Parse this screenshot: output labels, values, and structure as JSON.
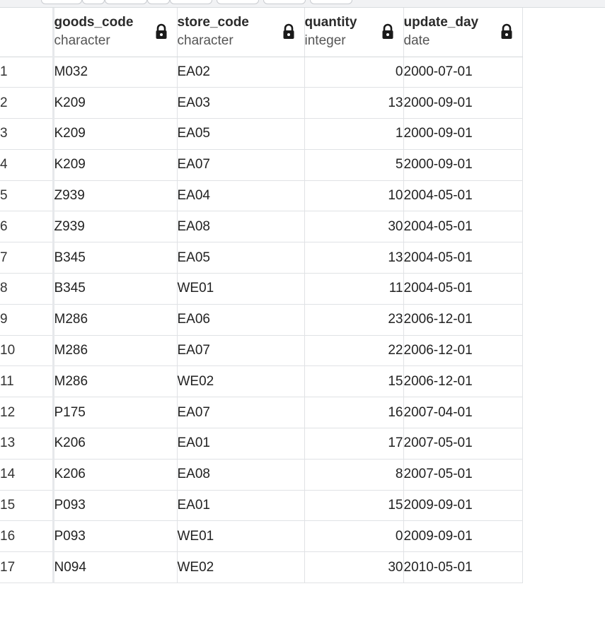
{
  "columns": [
    {
      "name": "goods_code",
      "type": "character",
      "lock": "lock-icon"
    },
    {
      "name": "store_code",
      "type": "character",
      "lock": "lock-icon"
    },
    {
      "name": "quantity",
      "type": "integer",
      "lock": "lock-icon"
    },
    {
      "name": "update_day",
      "type": "date",
      "lock": "lock-icon"
    }
  ],
  "rows": [
    {
      "n": "1",
      "goods_code": "M032",
      "store_code": "EA02",
      "quantity": "0",
      "update_day": "2000-07-01"
    },
    {
      "n": "2",
      "goods_code": "K209",
      "store_code": "EA03",
      "quantity": "13",
      "update_day": "2000-09-01"
    },
    {
      "n": "3",
      "goods_code": "K209",
      "store_code": "EA05",
      "quantity": "1",
      "update_day": "2000-09-01"
    },
    {
      "n": "4",
      "goods_code": "K209",
      "store_code": "EA07",
      "quantity": "5",
      "update_day": "2000-09-01"
    },
    {
      "n": "5",
      "goods_code": "Z939",
      "store_code": "EA04",
      "quantity": "10",
      "update_day": "2004-05-01"
    },
    {
      "n": "6",
      "goods_code": "Z939",
      "store_code": "EA08",
      "quantity": "30",
      "update_day": "2004-05-01"
    },
    {
      "n": "7",
      "goods_code": "B345",
      "store_code": "EA05",
      "quantity": "13",
      "update_day": "2004-05-01"
    },
    {
      "n": "8",
      "goods_code": "B345",
      "store_code": "WE01",
      "quantity": "11",
      "update_day": "2004-05-01"
    },
    {
      "n": "9",
      "goods_code": "M286",
      "store_code": "EA06",
      "quantity": "23",
      "update_day": "2006-12-01"
    },
    {
      "n": "10",
      "goods_code": "M286",
      "store_code": "EA07",
      "quantity": "22",
      "update_day": "2006-12-01"
    },
    {
      "n": "11",
      "goods_code": "M286",
      "store_code": "WE02",
      "quantity": "15",
      "update_day": "2006-12-01"
    },
    {
      "n": "12",
      "goods_code": "P175",
      "store_code": "EA07",
      "quantity": "16",
      "update_day": "2007-04-01"
    },
    {
      "n": "13",
      "goods_code": "K206",
      "store_code": "EA01",
      "quantity": "17",
      "update_day": "2007-05-01"
    },
    {
      "n": "14",
      "goods_code": "K206",
      "store_code": "EA08",
      "quantity": "8",
      "update_day": "2007-05-01"
    },
    {
      "n": "15",
      "goods_code": "P093",
      "store_code": "EA01",
      "quantity": "15",
      "update_day": "2009-09-01"
    },
    {
      "n": "16",
      "goods_code": "P093",
      "store_code": "WE01",
      "quantity": "0",
      "update_day": "2009-09-01"
    },
    {
      "n": "17",
      "goods_code": "N094",
      "store_code": "WE02",
      "quantity": "30",
      "update_day": "2010-05-01"
    }
  ]
}
